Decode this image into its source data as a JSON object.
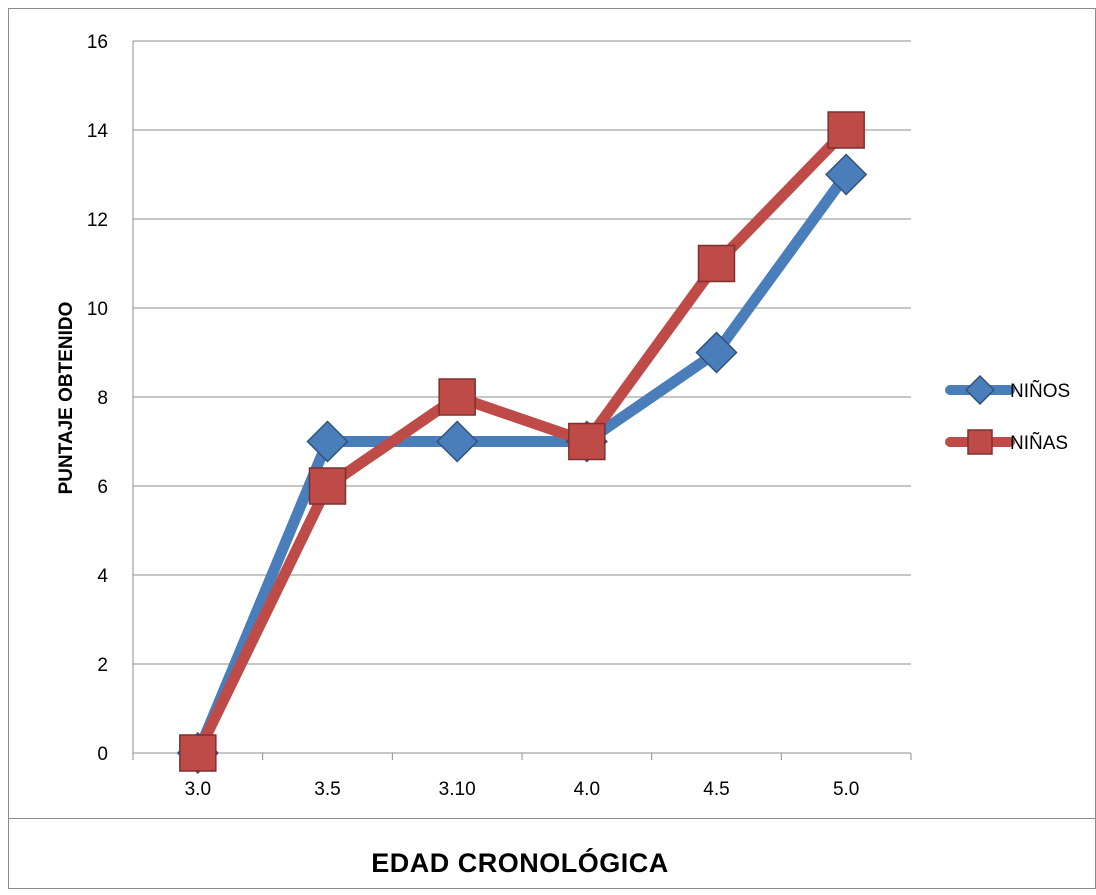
{
  "chart_data": {
    "type": "line",
    "categories": [
      "3.0",
      "3.5",
      "3.10",
      "4.0",
      "4.5",
      "5.0"
    ],
    "series": [
      {
        "name": "NIÑOS",
        "values": [
          0,
          7,
          7,
          7,
          9,
          13
        ],
        "color": "#4A7EBB",
        "marker": "diamond"
      },
      {
        "name": "NIÑAS",
        "values": [
          0,
          6,
          8,
          7,
          11,
          14
        ],
        "color": "#BE4B48",
        "marker": "square"
      }
    ],
    "xlabel": "EDAD CRONOLÓGICA",
    "ylabel": "PUNTAJE OBTENIDO",
    "ylim": [
      0,
      16
    ],
    "yticks": [
      0,
      2,
      4,
      6,
      8,
      10,
      12,
      14,
      16
    ],
    "grid": true,
    "legend_position": "right"
  }
}
